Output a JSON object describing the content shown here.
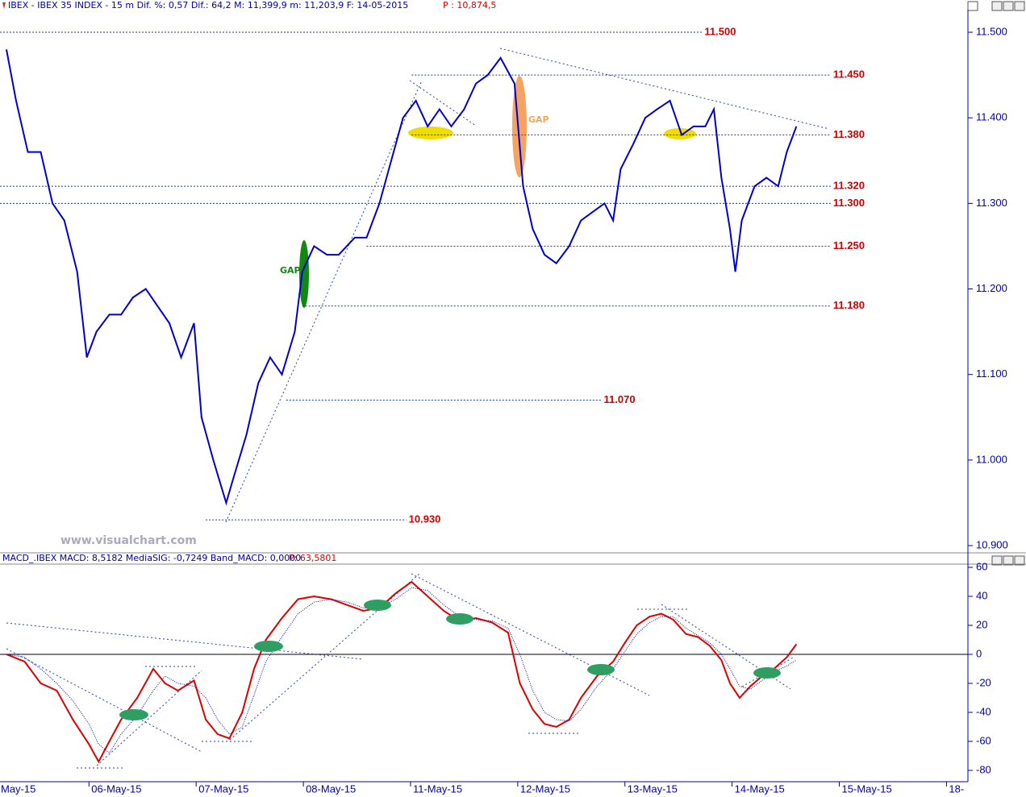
{
  "chart_data": [
    {
      "type": "line",
      "title": "IBEX - IBEX 35 INDEX -  15 m Dif. %: 0,57 Dif.: 64,2 M: 11,399,9 m: 11,203,9 F: 14-05-2015",
      "subtitle": "P : 10,874,5",
      "watermark": "www.visualchart.com",
      "annotations": [
        "GAP",
        "GAP"
      ],
      "xlim": [
        -0.83,
        8.2
      ],
      "ylim": [
        10.8925,
        11.5264
      ],
      "yticks": [
        {
          "value": 11.5,
          "label": "11.500"
        },
        {
          "value": 11.4,
          "label": "11.400"
        },
        {
          "value": 11.3,
          "label": "11.300"
        },
        {
          "value": 11.2,
          "label": "11.200"
        },
        {
          "value": 11.1,
          "label": "11.100"
        },
        {
          "value": 11.0,
          "label": "11.000"
        },
        {
          "value": 10.9,
          "label": "10.900"
        }
      ],
      "levels": [
        {
          "value": 11.5,
          "label": "11.500",
          "x": [
            -0.83,
            5.72
          ]
        },
        {
          "value": 11.45,
          "label": "11.450",
          "x": [
            3.01,
            6.92
          ]
        },
        {
          "value": 11.38,
          "label": "11.380",
          "x": [
            3.01,
            6.92
          ]
        },
        {
          "value": 11.32,
          "label": "11.320",
          "x": [
            -0.83,
            6.92
          ]
        },
        {
          "value": 11.3,
          "label": "11.300",
          "x": [
            -0.83,
            6.92
          ]
        },
        {
          "value": 11.25,
          "label": "11.250",
          "x": [
            2.59,
            6.92
          ]
        },
        {
          "value": 11.18,
          "label": "11.180",
          "x": [
            1.99,
            6.92
          ]
        },
        {
          "value": 11.07,
          "label": "11.070",
          "x": [
            1.84,
            4.78
          ]
        },
        {
          "value": 10.93,
          "label": "10.930",
          "x": [
            1.09,
            2.96
          ]
        }
      ],
      "series": [
        {
          "color": "#0000cc",
          "x": [
            -0.77,
            -0.68,
            -0.57,
            -0.45,
            -0.34,
            -0.23,
            -0.11,
            -0.02,
            0.07,
            0.19,
            0.3,
            0.41,
            0.53,
            0.64,
            0.75,
            0.86,
            0.98,
            1.05,
            1.16,
            1.28,
            1.35,
            1.47,
            1.58,
            1.69,
            1.8,
            1.92,
            1.99,
            2.1,
            2.22,
            2.33,
            2.48,
            2.59,
            2.71,
            2.82,
            2.93,
            3.05,
            3.16,
            3.27,
            3.38,
            3.5,
            3.61,
            3.72,
            3.84,
            3.97,
            4.05,
            4.14,
            4.25,
            4.36,
            4.48,
            4.59,
            4.7,
            4.81,
            4.89,
            4.96,
            5.08,
            5.19,
            5.3,
            5.42,
            5.53,
            5.64,
            5.75,
            5.83,
            5.9,
            5.98,
            6.03,
            6.09,
            6.21,
            6.32,
            6.43,
            6.51,
            6.6
          ],
          "values": [
            11.48,
            11.42,
            11.36,
            11.36,
            11.3,
            11.28,
            11.22,
            11.12,
            11.15,
            11.17,
            11.17,
            11.19,
            11.2,
            11.18,
            11.16,
            11.12,
            11.16,
            11.05,
            11.0,
            10.95,
            10.98,
            11.03,
            11.09,
            11.12,
            11.1,
            11.15,
            11.22,
            11.25,
            11.24,
            11.24,
            11.26,
            11.26,
            11.3,
            11.35,
            11.4,
            11.42,
            11.39,
            11.41,
            11.39,
            11.41,
            11.44,
            11.45,
            11.47,
            11.44,
            11.32,
            11.27,
            11.24,
            11.23,
            11.25,
            11.28,
            11.29,
            11.3,
            11.28,
            11.34,
            11.37,
            11.4,
            11.41,
            11.42,
            11.38,
            11.39,
            11.39,
            11.41,
            11.33,
            11.27,
            11.22,
            11.28,
            11.32,
            11.33,
            11.32,
            11.36,
            11.39
          ]
        }
      ]
    },
    {
      "type": "line",
      "title": "MACD_.IBEX MACD: 8,5182 MediaSIG: -0,7249 Band_MACD: 0,0000",
      "subtitle": "P: 63,5801",
      "xlim": [
        -0.83,
        8.2
      ],
      "ylim": [
        -87.8,
        61.1
      ],
      "yticks": [
        60,
        40,
        20,
        0,
        -20,
        -40,
        -60,
        -80
      ],
      "xticks": [
        {
          "value": -1,
          "label": "May-15"
        },
        {
          "value": 0,
          "label": "06-May-15"
        },
        {
          "value": 1,
          "label": "07-May-15"
        },
        {
          "value": 2,
          "label": "08-May-15"
        },
        {
          "value": 3,
          "label": "11-May-15"
        },
        {
          "value": 4,
          "label": "12-May-15"
        },
        {
          "value": 5,
          "label": "13-May-15"
        },
        {
          "value": 6,
          "label": "14-May-15"
        },
        {
          "value": 7,
          "label": "15-May-15"
        },
        {
          "value": 8,
          "label": "18-"
        }
      ],
      "series": [
        {
          "color": "#dd0000",
          "style": "solid",
          "x": [
            -0.77,
            -0.6,
            -0.45,
            -0.3,
            -0.15,
            0.0,
            0.09,
            0.19,
            0.3,
            0.45,
            0.6,
            0.71,
            0.83,
            0.98,
            1.09,
            1.2,
            1.31,
            1.43,
            1.54,
            1.65,
            1.8,
            1.95,
            2.1,
            2.26,
            2.41,
            2.56,
            2.71,
            2.86,
            3.01,
            3.16,
            3.31,
            3.46,
            3.61,
            3.76,
            3.91,
            4.02,
            4.14,
            4.25,
            4.36,
            4.48,
            4.59,
            4.74,
            4.89,
            5.0,
            5.11,
            5.23,
            5.34,
            5.45,
            5.57,
            5.68,
            5.79,
            5.9,
            5.98,
            6.07,
            6.17,
            6.28,
            6.39,
            6.51,
            6.6
          ],
          "values": [
            0,
            -5,
            -20,
            -25,
            -45,
            -62,
            -74,
            -60,
            -45,
            -30,
            -10,
            -20,
            -25,
            -18,
            -45,
            -55,
            -58,
            -40,
            -10,
            10,
            25,
            38,
            40,
            38,
            34,
            30,
            32,
            42,
            50,
            40,
            30,
            23,
            25,
            22,
            15,
            -20,
            -38,
            -48,
            -50,
            -45,
            -30,
            -15,
            -5,
            8,
            20,
            26,
            28,
            24,
            14,
            12,
            6,
            -4,
            -20,
            -30,
            -22,
            -15,
            -10,
            -2,
            7
          ]
        },
        {
          "color": "#0000cc",
          "style": "dotted",
          "x": [
            -0.77,
            -0.6,
            -0.45,
            -0.3,
            -0.15,
            0.0,
            0.09,
            0.19,
            0.3,
            0.45,
            0.6,
            0.71,
            0.83,
            0.98,
            1.09,
            1.2,
            1.31,
            1.43,
            1.54,
            1.65,
            1.8,
            1.95,
            2.1,
            2.26,
            2.41,
            2.56,
            2.71,
            2.86,
            3.01,
            3.16,
            3.31,
            3.46,
            3.61,
            3.76,
            3.91,
            4.02,
            4.14,
            4.25,
            4.36,
            4.48,
            4.59,
            4.74,
            4.89,
            5.0,
            5.11,
            5.23,
            5.34,
            5.45,
            5.57,
            5.68,
            5.79,
            5.9,
            5.98,
            6.07,
            6.17,
            6.28,
            6.39,
            6.51,
            6.6
          ],
          "values": [
            0,
            -2,
            -10,
            -20,
            -32,
            -48,
            -62,
            -68,
            -55,
            -42,
            -25,
            -15,
            -20,
            -22,
            -30,
            -45,
            -55,
            -50,
            -28,
            -5,
            12,
            28,
            36,
            38,
            36,
            32,
            32,
            38,
            46,
            44,
            34,
            26,
            24,
            23,
            18,
            0,
            -25,
            -40,
            -45,
            -46,
            -38,
            -22,
            -10,
            2,
            14,
            22,
            26,
            26,
            18,
            13,
            8,
            0,
            -10,
            -22,
            -24,
            -18,
            -12,
            -8,
            -4
          ]
        }
      ]
    }
  ]
}
